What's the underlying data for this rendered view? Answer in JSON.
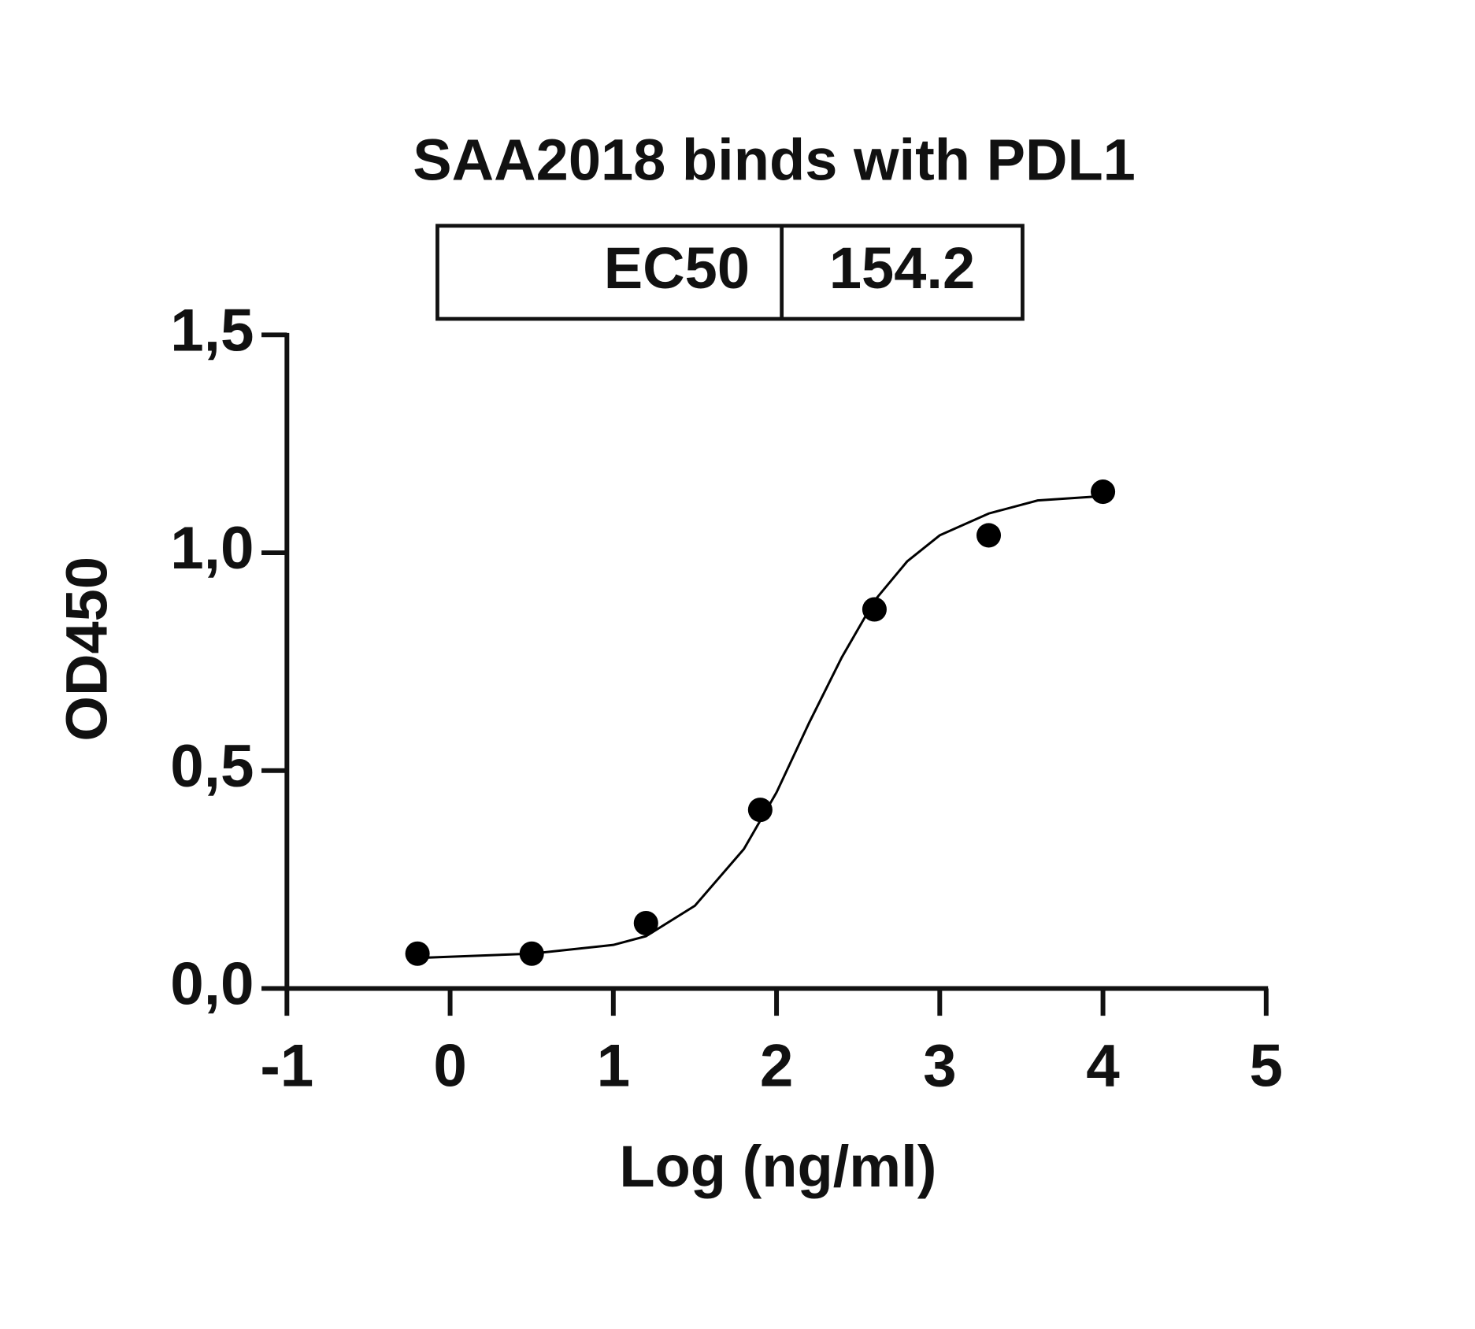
{
  "chart_data": {
    "type": "scatter",
    "title": "SAA2018 binds with PDL1",
    "x_label": "Log (ng/ml)",
    "y_label": "OD450",
    "annotation": {
      "label": "EC50",
      "value": 154.2
    },
    "series": [
      {
        "color": "#000000",
        "x": [
          -0.2,
          0.5,
          1.2,
          1.9,
          2.6,
          3.3,
          4.0
        ],
        "values": [
          0.08,
          0.08,
          0.15,
          0.41,
          0.87,
          1.04,
          1.14
        ]
      }
    ],
    "fit": {
      "color": "#000000",
      "x": [
        -0.2,
        0.5,
        1.0,
        1.2,
        1.5,
        1.8,
        2.0,
        2.2,
        2.4,
        2.6,
        2.8,
        3.0,
        3.3,
        3.6,
        4.0
      ],
      "values": [
        0.07,
        0.08,
        0.1,
        0.12,
        0.19,
        0.32,
        0.45,
        0.61,
        0.76,
        0.89,
        0.98,
        1.04,
        1.09,
        1.12,
        1.13
      ]
    },
    "xlim": [
      -1,
      5
    ],
    "xticks": [
      -1,
      0,
      1,
      2,
      3,
      4,
      5
    ],
    "ylim": [
      0,
      1.5
    ],
    "yticks": [
      {
        "value": 0,
        "label": "0,0"
      },
      {
        "value": 0.5,
        "label": "0,5"
      },
      {
        "value": 1.0,
        "label": "1,0"
      },
      {
        "value": 1.5,
        "label": "1,5"
      }
    ]
  }
}
